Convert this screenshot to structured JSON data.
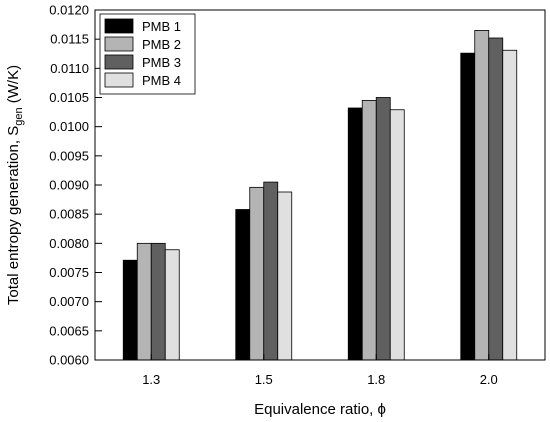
{
  "chart_data": {
    "type": "bar",
    "xlabel": "Equivalence ratio, ϕ",
    "ylabel": {
      "prefix": "Total entropy generation, S",
      "subscript": "gen",
      "suffix": " (W/K)"
    },
    "categories": [
      "1.3",
      "1.5",
      "1.8",
      "2.0"
    ],
    "ylim": [
      0.006,
      0.012
    ],
    "yticks": [
      "0.0060",
      "0.0065",
      "0.0070",
      "0.0075",
      "0.0080",
      "0.0085",
      "0.0090",
      "0.0095",
      "0.0100",
      "0.0105",
      "0.0110",
      "0.0115",
      "0.0120"
    ],
    "legend_position": "top-left",
    "grid": false,
    "series": [
      {
        "name": "PMB 1",
        "color": "#000000",
        "values": [
          0.00771,
          0.00858,
          0.01032,
          0.01126
        ]
      },
      {
        "name": "PMB 2",
        "color": "#b4b4b4",
        "values": [
          0.008,
          0.00896,
          0.01045,
          0.01165
        ]
      },
      {
        "name": "PMB 3",
        "color": "#606060",
        "values": [
          0.008,
          0.00905,
          0.0105,
          0.01152
        ]
      },
      {
        "name": "PMB 4",
        "color": "#e0e0e0",
        "values": [
          0.00789,
          0.00888,
          0.01029,
          0.01131
        ]
      }
    ]
  }
}
